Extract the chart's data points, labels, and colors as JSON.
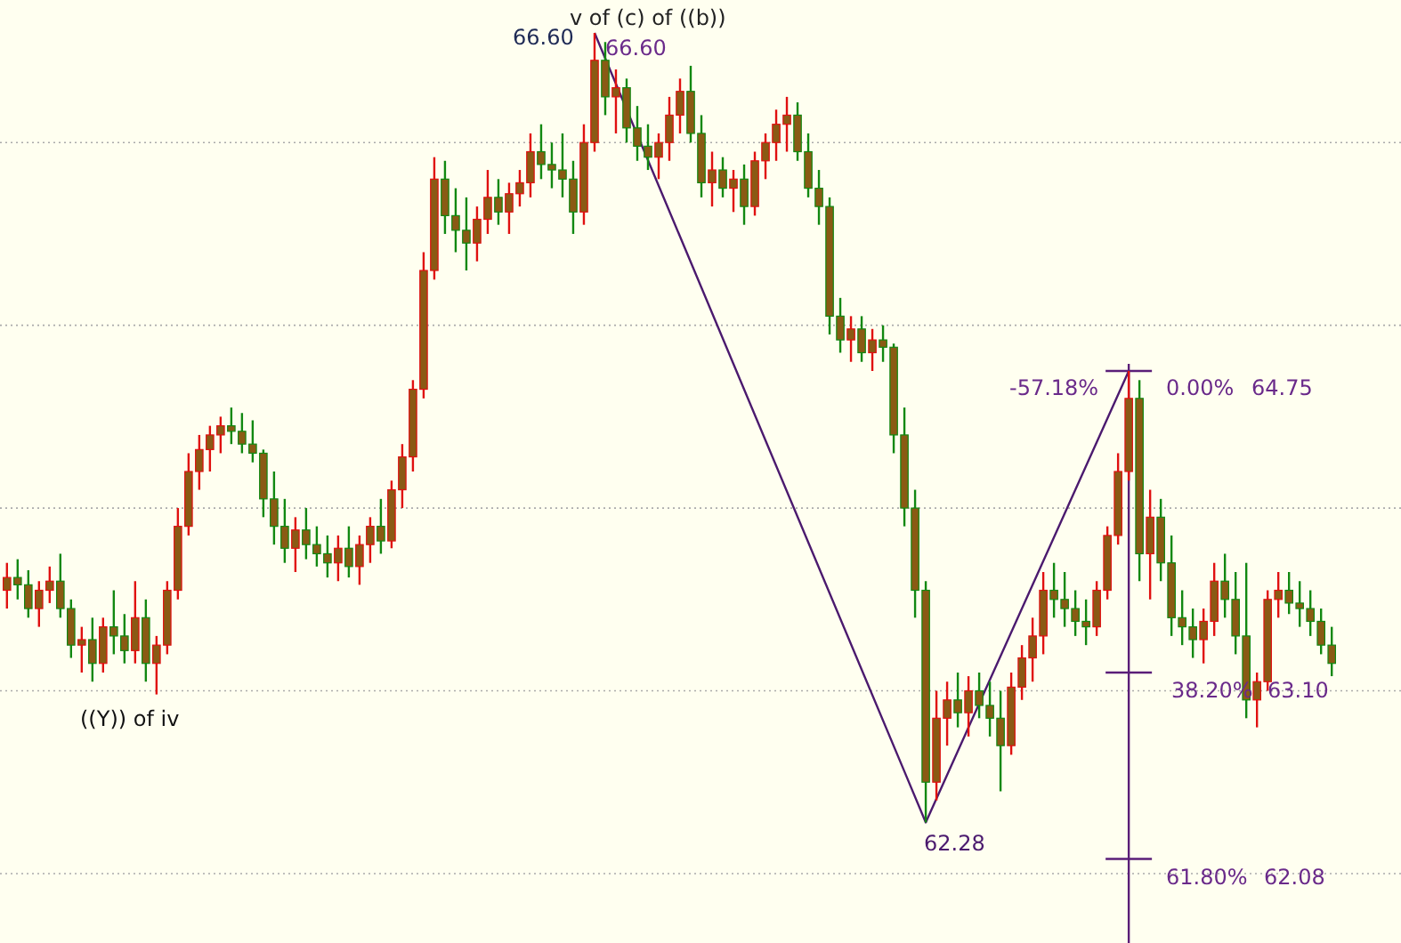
{
  "chart_data": {
    "type": "candlestick",
    "categories": [
      null,
      null,
      null,
      null,
      null,
      null,
      null,
      null,
      null,
      null,
      null,
      null,
      null,
      null,
      null,
      null,
      null,
      null,
      null,
      null,
      null,
      null,
      null,
      null,
      null,
      null,
      null,
      null,
      null,
      null,
      null,
      null,
      null,
      null,
      null,
      null,
      null,
      null,
      null,
      null,
      null,
      null,
      null,
      null,
      null,
      null,
      null,
      null,
      null,
      null,
      null,
      null,
      null,
      null,
      null,
      null,
      null,
      null,
      null,
      null,
      null,
      null,
      null,
      null,
      null,
      null,
      null,
      null,
      null,
      null,
      null,
      null,
      null,
      null,
      null,
      null,
      null,
      null,
      null,
      null,
      null,
      null,
      null,
      null,
      null,
      null,
      null,
      null,
      null,
      null,
      null,
      null,
      null,
      null,
      null,
      null,
      null,
      null,
      null,
      null,
      null,
      null,
      null,
      null,
      null,
      null,
      null,
      null,
      null,
      null,
      null,
      null,
      null,
      null,
      null,
      null,
      null,
      null,
      null,
      null,
      null,
      null,
      null,
      null,
      null
    ],
    "ohlc": [
      [
        63.55,
        63.7,
        63.45,
        63.62
      ],
      [
        63.62,
        63.72,
        63.5,
        63.58
      ],
      [
        63.58,
        63.66,
        63.4,
        63.45
      ],
      [
        63.45,
        63.6,
        63.35,
        63.55
      ],
      [
        63.55,
        63.68,
        63.48,
        63.6
      ],
      [
        63.6,
        63.75,
        63.4,
        63.45
      ],
      [
        63.45,
        63.5,
        63.18,
        63.25
      ],
      [
        63.25,
        63.35,
        63.1,
        63.28
      ],
      [
        63.28,
        63.4,
        63.05,
        63.15
      ],
      [
        63.15,
        63.4,
        63.1,
        63.35
      ],
      [
        63.35,
        63.55,
        63.2,
        63.3
      ],
      [
        63.3,
        63.42,
        63.15,
        63.22
      ],
      [
        63.22,
        63.6,
        63.15,
        63.4
      ],
      [
        63.4,
        63.5,
        63.05,
        63.15
      ],
      [
        63.15,
        63.3,
        62.98,
        63.25
      ],
      [
        63.25,
        63.6,
        63.2,
        63.55
      ],
      [
        63.55,
        64.0,
        63.5,
        63.9
      ],
      [
        63.9,
        64.3,
        63.85,
        64.2
      ],
      [
        64.2,
        64.4,
        64.1,
        64.32
      ],
      [
        64.32,
        64.45,
        64.2,
        64.4
      ],
      [
        64.4,
        64.5,
        64.3,
        64.45
      ],
      [
        64.45,
        64.55,
        64.35,
        64.42
      ],
      [
        64.42,
        64.52,
        64.3,
        64.35
      ],
      [
        64.35,
        64.48,
        64.25,
        64.3
      ],
      [
        64.3,
        64.32,
        63.95,
        64.05
      ],
      [
        64.05,
        64.2,
        63.8,
        63.9
      ],
      [
        63.9,
        64.05,
        63.7,
        63.78
      ],
      [
        63.78,
        63.95,
        63.65,
        63.88
      ],
      [
        63.88,
        64.0,
        63.72,
        63.8
      ],
      [
        63.8,
        63.9,
        63.68,
        63.75
      ],
      [
        63.75,
        63.85,
        63.62,
        63.7
      ],
      [
        63.7,
        63.85,
        63.6,
        63.78
      ],
      [
        63.78,
        63.9,
        63.62,
        63.68
      ],
      [
        63.68,
        63.85,
        63.58,
        63.8
      ],
      [
        63.8,
        63.95,
        63.7,
        63.9
      ],
      [
        63.9,
        64.05,
        63.75,
        63.82
      ],
      [
        63.82,
        64.15,
        63.78,
        64.1
      ],
      [
        64.1,
        64.35,
        64.0,
        64.28
      ],
      [
        64.28,
        64.7,
        64.2,
        64.65
      ],
      [
        64.65,
        65.4,
        64.6,
        65.3
      ],
      [
        65.3,
        65.92,
        65.25,
        65.8
      ],
      [
        65.8,
        65.9,
        65.5,
        65.6
      ],
      [
        65.6,
        65.75,
        65.4,
        65.52
      ],
      [
        65.52,
        65.7,
        65.3,
        65.45
      ],
      [
        65.45,
        65.65,
        65.35,
        65.58
      ],
      [
        65.58,
        65.85,
        65.5,
        65.7
      ],
      [
        65.7,
        65.8,
        65.55,
        65.62
      ],
      [
        65.62,
        65.78,
        65.5,
        65.72
      ],
      [
        65.72,
        65.85,
        65.65,
        65.78
      ],
      [
        65.78,
        66.05,
        65.7,
        65.95
      ],
      [
        65.95,
        66.1,
        65.8,
        65.88
      ],
      [
        65.88,
        66.0,
        65.75,
        65.85
      ],
      [
        65.85,
        66.05,
        65.7,
        65.8
      ],
      [
        65.8,
        65.9,
        65.5,
        65.62
      ],
      [
        65.62,
        66.1,
        65.55,
        66.0
      ],
      [
        66.0,
        66.6,
        65.95,
        66.45
      ],
      [
        66.45,
        66.55,
        66.15,
        66.25
      ],
      [
        66.25,
        66.4,
        66.05,
        66.3
      ],
      [
        66.3,
        66.35,
        66.0,
        66.08
      ],
      [
        66.08,
        66.2,
        65.9,
        65.98
      ],
      [
        65.98,
        66.1,
        65.85,
        65.92
      ],
      [
        65.92,
        66.05,
        65.8,
        66.0
      ],
      [
        66.0,
        66.25,
        65.9,
        66.15
      ],
      [
        66.15,
        66.35,
        66.05,
        66.28
      ],
      [
        66.28,
        66.42,
        66.0,
        66.05
      ],
      [
        66.05,
        66.15,
        65.7,
        65.78
      ],
      [
        65.78,
        65.95,
        65.65,
        65.85
      ],
      [
        65.85,
        65.92,
        65.7,
        65.75
      ],
      [
        65.75,
        65.85,
        65.62,
        65.8
      ],
      [
        65.8,
        65.88,
        65.55,
        65.65
      ],
      [
        65.65,
        65.95,
        65.6,
        65.9
      ],
      [
        65.9,
        66.05,
        65.8,
        66.0
      ],
      [
        66.0,
        66.18,
        65.9,
        66.1
      ],
      [
        66.1,
        66.25,
        65.95,
        66.15
      ],
      [
        66.15,
        66.22,
        65.9,
        65.95
      ],
      [
        65.95,
        66.05,
        65.7,
        65.75
      ],
      [
        65.75,
        65.85,
        65.55,
        65.65
      ],
      [
        65.65,
        65.7,
        64.95,
        65.05
      ],
      [
        65.05,
        65.15,
        64.85,
        64.92
      ],
      [
        64.92,
        65.05,
        64.8,
        64.98
      ],
      [
        64.98,
        65.05,
        64.8,
        64.85
      ],
      [
        64.85,
        64.98,
        64.75,
        64.92
      ],
      [
        64.92,
        65.0,
        64.8,
        64.88
      ],
      [
        64.88,
        64.9,
        64.3,
        64.4
      ],
      [
        64.4,
        64.55,
        63.9,
        64.0
      ],
      [
        64.0,
        64.1,
        63.4,
        63.55
      ],
      [
        63.55,
        63.6,
        62.28,
        62.5
      ],
      [
        62.5,
        63.0,
        62.4,
        62.85
      ],
      [
        62.85,
        63.05,
        62.7,
        62.95
      ],
      [
        62.95,
        63.1,
        62.8,
        62.88
      ],
      [
        62.88,
        63.08,
        62.75,
        63.0
      ],
      [
        63.0,
        63.1,
        62.85,
        62.92
      ],
      [
        62.92,
        63.05,
        62.75,
        62.85
      ],
      [
        62.85,
        63.0,
        62.45,
        62.7
      ],
      [
        62.7,
        63.1,
        62.65,
        63.02
      ],
      [
        63.02,
        63.25,
        62.95,
        63.18
      ],
      [
        63.18,
        63.4,
        63.05,
        63.3
      ],
      [
        63.3,
        63.65,
        63.2,
        63.55
      ],
      [
        63.55,
        63.7,
        63.4,
        63.5
      ],
      [
        63.5,
        63.65,
        63.35,
        63.45
      ],
      [
        63.45,
        63.55,
        63.3,
        63.38
      ],
      [
        63.38,
        63.5,
        63.25,
        63.35
      ],
      [
        63.35,
        63.6,
        63.3,
        63.55
      ],
      [
        63.55,
        63.9,
        63.5,
        63.85
      ],
      [
        63.85,
        64.3,
        63.8,
        64.2
      ],
      [
        64.2,
        64.75,
        64.15,
        64.6
      ],
      [
        64.6,
        64.7,
        63.6,
        63.75
      ],
      [
        63.75,
        64.1,
        63.5,
        63.95
      ],
      [
        63.95,
        64.05,
        63.6,
        63.7
      ],
      [
        63.7,
        63.85,
        63.3,
        63.4
      ],
      [
        63.4,
        63.55,
        63.25,
        63.35
      ],
      [
        63.35,
        63.45,
        63.18,
        63.28
      ],
      [
        63.28,
        63.45,
        63.15,
        63.38
      ],
      [
        63.38,
        63.7,
        63.3,
        63.6
      ],
      [
        63.6,
        63.75,
        63.4,
        63.5
      ],
      [
        63.5,
        63.65,
        63.2,
        63.3
      ],
      [
        63.3,
        63.7,
        62.85,
        62.95
      ],
      [
        62.95,
        63.1,
        62.8,
        63.05
      ],
      [
        63.05,
        63.55,
        63.0,
        63.5
      ],
      [
        63.5,
        63.65,
        63.4,
        63.55
      ],
      [
        63.55,
        63.65,
        63.42,
        63.48
      ],
      [
        63.48,
        63.6,
        63.35,
        63.45
      ],
      [
        63.45,
        63.55,
        63.3,
        63.38
      ],
      [
        63.38,
        63.45,
        63.2,
        63.25
      ],
      [
        63.25,
        63.35,
        63.08,
        63.15
      ]
    ],
    "series": [
      {
        "type": "line",
        "color": "#4b1a6e",
        "values": [
          null,
          null,
          null,
          null,
          null,
          null,
          null,
          null,
          null,
          null,
          null,
          null,
          null,
          null,
          null,
          null,
          null,
          null,
          null,
          null,
          null,
          null,
          null,
          null,
          null,
          null,
          null,
          null,
          null,
          null,
          null,
          null,
          null,
          null,
          null,
          null,
          null,
          null,
          null,
          null,
          null,
          null,
          null,
          null,
          null,
          null,
          null,
          null,
          null,
          null,
          null,
          null,
          null,
          null,
          null,
          66.6,
          null,
          null,
          null,
          null,
          null,
          null,
          null,
          null,
          null,
          null,
          null,
          null,
          null,
          null,
          null,
          null,
          null,
          null,
          null,
          null,
          null,
          null,
          null,
          null,
          null,
          null,
          null,
          null,
          null,
          null,
          62.28,
          null,
          null,
          null,
          null,
          null,
          null,
          null,
          null,
          null,
          null,
          null,
          null,
          null,
          null,
          null,
          null,
          null,
          null,
          64.75,
          null,
          null,
          null,
          null,
          null,
          null,
          null,
          null,
          null,
          null,
          null,
          null,
          null,
          null,
          null,
          null,
          null,
          null,
          null
        ]
      }
    ],
    "ylim": [
      61.62,
      66.78
    ],
    "yticks": [
      {
        "value": 62,
        "label": null
      },
      {
        "value": 63,
        "label": null
      },
      {
        "value": 64,
        "label": null
      },
      {
        "value": 65,
        "label": null
      },
      {
        "value": 66,
        "label": null
      }
    ],
    "grid": "y",
    "annotations": [
      "66.60",
      "v of (c) of ((b))",
      "66.60",
      "62.28",
      "-57.18%",
      "0.00%",
      "64.75",
      "38.20%",
      "63.10",
      "61.80%",
      "62.08",
      "((Y)) of iv"
    ]
  }
}
